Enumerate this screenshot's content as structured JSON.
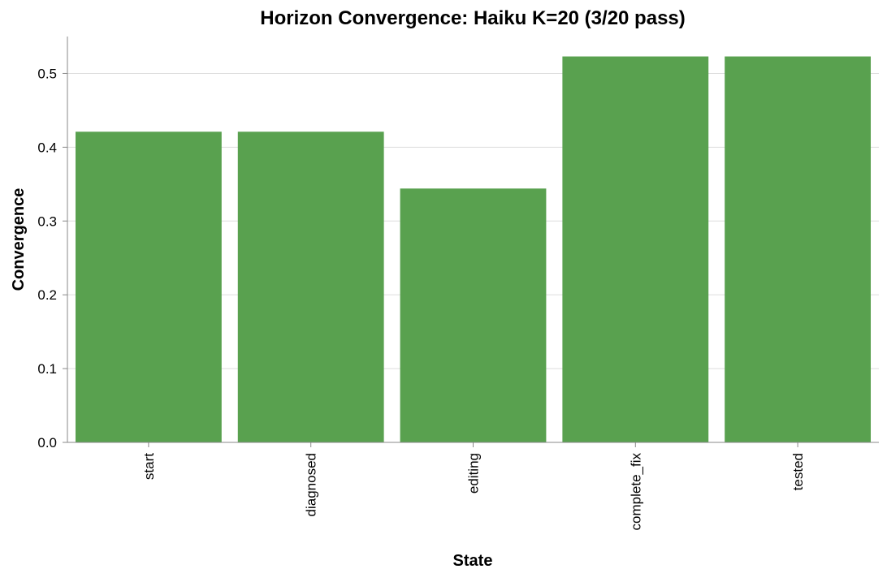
{
  "chart_data": {
    "type": "bar",
    "title": "Horizon Convergence: Haiku K=20 (3/20 pass)",
    "xlabel": "State",
    "ylabel": "Convergence",
    "categories": [
      "start",
      "diagnosed",
      "editing",
      "complete_fix",
      "tested"
    ],
    "values": [
      0.421,
      0.421,
      0.344,
      0.523,
      0.523
    ],
    "ylim": [
      0,
      0.55
    ],
    "yticks": [
      0.0,
      0.1,
      0.2,
      0.3,
      0.4,
      0.5
    ],
    "ytick_labels": [
      "0.0",
      "0.1",
      "0.2",
      "0.3",
      "0.4",
      "0.5"
    ],
    "grid": true,
    "legend": "none",
    "bar_color": "#59a14f"
  }
}
